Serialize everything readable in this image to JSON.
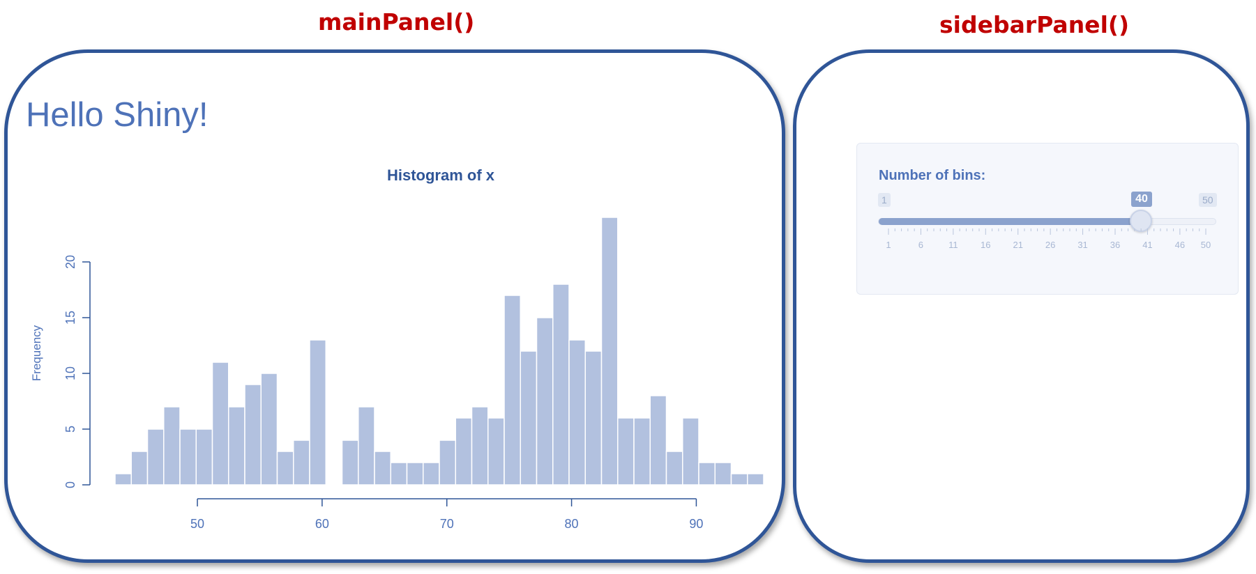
{
  "labels": {
    "main_panel": "mainPanel()",
    "sidebar_panel": "sidebarPanel()"
  },
  "app": {
    "title": "Hello Shiny!"
  },
  "sidebar": {
    "bins_label": "Number of bins:",
    "slider": {
      "min": 1,
      "max": 50,
      "value": 40,
      "min_label": "1",
      "max_label": "50",
      "value_label": "40",
      "tick_labels": [
        "1",
        "6",
        "11",
        "16",
        "21",
        "26",
        "31",
        "36",
        "41",
        "46",
        "50"
      ]
    }
  },
  "colors": {
    "accent": "#2f5597",
    "annotation_red": "#c00000",
    "bar_fill": "#b2c1df",
    "text_blue": "#4e72b8"
  },
  "chart_data": {
    "type": "bar",
    "title": "Histogram of x",
    "xlabel": "",
    "ylabel": "Frequency",
    "bin_width": 1.3,
    "bin_edges": [
      43.4,
      44.7,
      46.0,
      47.3,
      48.6,
      49.9,
      51.2,
      52.5,
      53.8,
      55.1,
      56.4,
      57.7,
      59.0,
      60.3,
      61.6,
      62.9,
      64.2,
      65.5,
      66.8,
      68.1,
      69.4,
      70.7,
      72.0,
      73.3,
      74.6,
      75.9,
      77.2,
      78.5,
      79.8,
      81.1,
      82.4,
      83.7,
      85.0,
      86.3,
      87.6,
      88.9,
      90.2,
      91.5,
      92.8,
      94.1,
      95.4
    ],
    "values": [
      1,
      3,
      5,
      7,
      5,
      5,
      11,
      7,
      9,
      10,
      3,
      4,
      13,
      0,
      4,
      7,
      3,
      2,
      2,
      2,
      4,
      6,
      7,
      6,
      17,
      12,
      15,
      18,
      13,
      12,
      24,
      6,
      6,
      8,
      3,
      6,
      2,
      2,
      1,
      1
    ],
    "xticks": [
      50,
      60,
      70,
      80,
      90
    ],
    "yticks": [
      0,
      5,
      10,
      15,
      20
    ],
    "xlim": [
      43.4,
      95.4
    ],
    "ylim": [
      0,
      24
    ]
  }
}
